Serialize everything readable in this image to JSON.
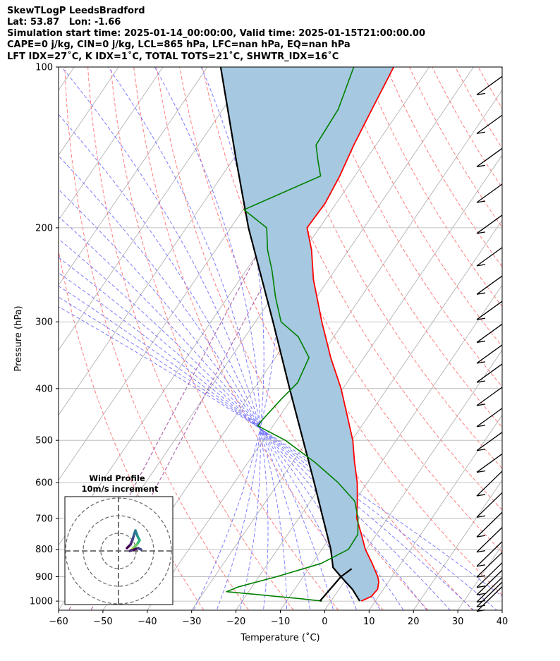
{
  "header": {
    "line1": "SkewTLogP LeedsBradford",
    "line2": "Lat: 53.87   Lon: -1.66",
    "line3": "Simulation start time: 2025-01-14_00:00:00, Valid time: 2025-01-15T21:00:00.00",
    "line4": "CAPE=0 j/kg, CIN=0 j/kg, LCL=865 hPa, LFC=nan hPa, EQ=nan hPa",
    "line5": "LFT IDX=27˚C, K IDX=1˚C, TOTAL TOTS=21˚C, SHWTR_IDX=16˚C"
  },
  "colors": {
    "temperature": "#ff0000",
    "dewpoint": "#008000",
    "parcel": "#000000",
    "shade": "#a6c8e0",
    "dry_adiabat": "#ff6666",
    "moist_adiabat": "#6666ff",
    "isotherm": "#aaaaaa",
    "mixing_ratio": "#a050a0"
  },
  "chart_data": {
    "type": "line",
    "xlabel": "Temperature (˚C)",
    "ylabel": "Pressure (hPa)",
    "xlim": [
      -60,
      40
    ],
    "ylim": [
      1040,
      100
    ],
    "y_scale": "log",
    "x_ticks": [
      "−60",
      "−50",
      "−40",
      "−30",
      "−20",
      "−10",
      "0",
      "10",
      "20",
      "30",
      "40"
    ],
    "y_ticks": [
      "100",
      "200",
      "300",
      "400",
      "500",
      "600",
      "700",
      "800",
      "900",
      "1000"
    ],
    "skew": true,
    "grid": true,
    "series": [
      {
        "key": "temperature",
        "pressure": [
          1000,
          980,
          950,
          920,
          900,
          850,
          800,
          750,
          700,
          650,
          600,
          550,
          500,
          450,
          400,
          350,
          300,
          250,
          220,
          200,
          180,
          160,
          140,
          120,
          100
        ],
        "temperature": [
          6.8,
          8.4,
          8.7,
          7.8,
          6.8,
          3.5,
          -0.2,
          -3.4,
          -6.9,
          -9.4,
          -12.3,
          -16.0,
          -19.8,
          -24.8,
          -30.4,
          -37.5,
          -45.0,
          -53.4,
          -58.4,
          -62.8,
          -62.5,
          -63.4,
          -65.0,
          -66.4,
          -68.0
        ]
      },
      {
        "key": "dewpoint",
        "pressure": [
          1000,
          990,
          960,
          940,
          900,
          850,
          800,
          750,
          700,
          650,
          600,
          550,
          500,
          470,
          460,
          420,
          390,
          350,
          320,
          300,
          270,
          240,
          220,
          200,
          185,
          160,
          150,
          140,
          120,
          100
        ],
        "temperature": [
          -2.0,
          -7.0,
          -25.0,
          -23.0,
          -16.0,
          -8.0,
          -4.0,
          -4.2,
          -6.6,
          -10.0,
          -16.6,
          -24.9,
          -35.0,
          -43.4,
          -43.4,
          -42.3,
          -41.1,
          -42.4,
          -48.0,
          -54.2,
          -59.2,
          -64.2,
          -68.3,
          -71.9,
          -79.8,
          -67.7,
          -70.6,
          -73.5,
          -74.0,
          -77.0
        ]
      },
      {
        "key": "parcel",
        "pressure": [
          1000,
          950,
          900,
          865,
          800,
          700,
          600,
          500,
          400,
          300,
          200,
          150,
          100
        ],
        "temperature": [
          6.5,
          3.0,
          -1.5,
          -4.7,
          -8.0,
          -14.5,
          -22.0,
          -31.0,
          -42.0,
          -56.0,
          -76.0,
          -89.0,
          -107.0
        ]
      },
      {
        "key": "surface_stub",
        "pressure": [
          1000,
          900,
          870
        ],
        "temperature": [
          -2.5,
          -1.5,
          -0.3
        ]
      }
    ],
    "wind_barbs_pressure": [
      110,
      130,
      150,
      175,
      200,
      230,
      260,
      290,
      320,
      350,
      380,
      420,
      460,
      510,
      560,
      620,
      680,
      740,
      790,
      840,
      880,
      920,
      950,
      980,
      1000,
      1020
    ],
    "inset": {
      "title": "Wind Profile",
      "subtitle": "10m/s increment"
    }
  }
}
